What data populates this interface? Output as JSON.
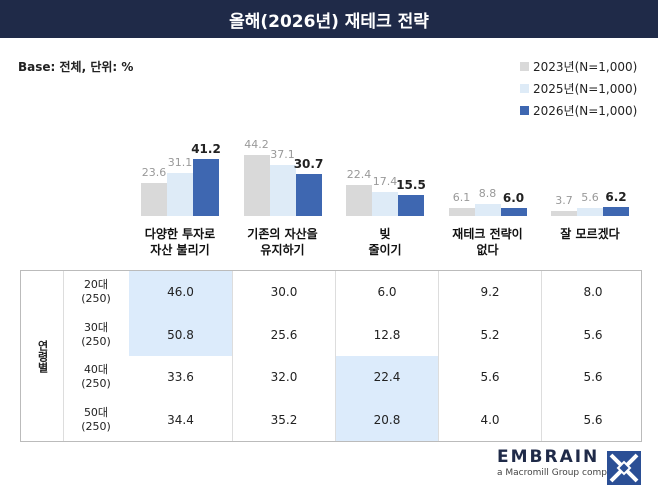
{
  "chart_data": {
    "type": "bar",
    "title": "올해(2026년) 재테크 전략",
    "note": "Base: 전체, 단위: %",
    "categories": [
      "다양한 투자로\n자산 불리기",
      "기존의 자산을\n유지하기",
      "빚\n줄이기",
      "재테크 전략이\n없다",
      "잘 모르겠다"
    ],
    "series": [
      {
        "name": "2023년(N=1,000)",
        "color": "#d9d9d9",
        "values": [
          23.6,
          44.2,
          22.4,
          6.1,
          3.7
        ]
      },
      {
        "name": "2025년(N=1,000)",
        "color": "#deebf7",
        "values": [
          31.1,
          37.1,
          17.4,
          8.8,
          5.6
        ]
      },
      {
        "name": "2026년(N=1,000)",
        "color": "#3e67b1",
        "values": [
          41.2,
          30.7,
          15.5,
          6.0,
          6.2
        ],
        "value_labels": [
          "41.2",
          "30.7",
          "15.5",
          "6.0",
          "6.2"
        ]
      }
    ]
  },
  "table": {
    "group_label": "연령별",
    "highlight_color": "#dcebfb",
    "rows": [
      {
        "label": "20대",
        "n": "(250)",
        "cells": [
          "46.0",
          "30.0",
          "6.0",
          "9.2",
          "8.0"
        ],
        "highlight": [
          0
        ]
      },
      {
        "label": "30대",
        "n": "(250)",
        "cells": [
          "50.8",
          "25.6",
          "12.8",
          "5.2",
          "5.6"
        ],
        "highlight": [
          0
        ]
      },
      {
        "label": "40대",
        "n": "(250)",
        "cells": [
          "33.6",
          "32.0",
          "22.4",
          "5.6",
          "5.6"
        ],
        "highlight": [
          2
        ]
      },
      {
        "label": "50대",
        "n": "(250)",
        "cells": [
          "34.4",
          "35.2",
          "20.8",
          "4.0",
          "5.6"
        ],
        "highlight": [
          2
        ]
      }
    ]
  },
  "footer": {
    "brand": "EMBRAIN",
    "tagline": "a Macromill Group company"
  }
}
